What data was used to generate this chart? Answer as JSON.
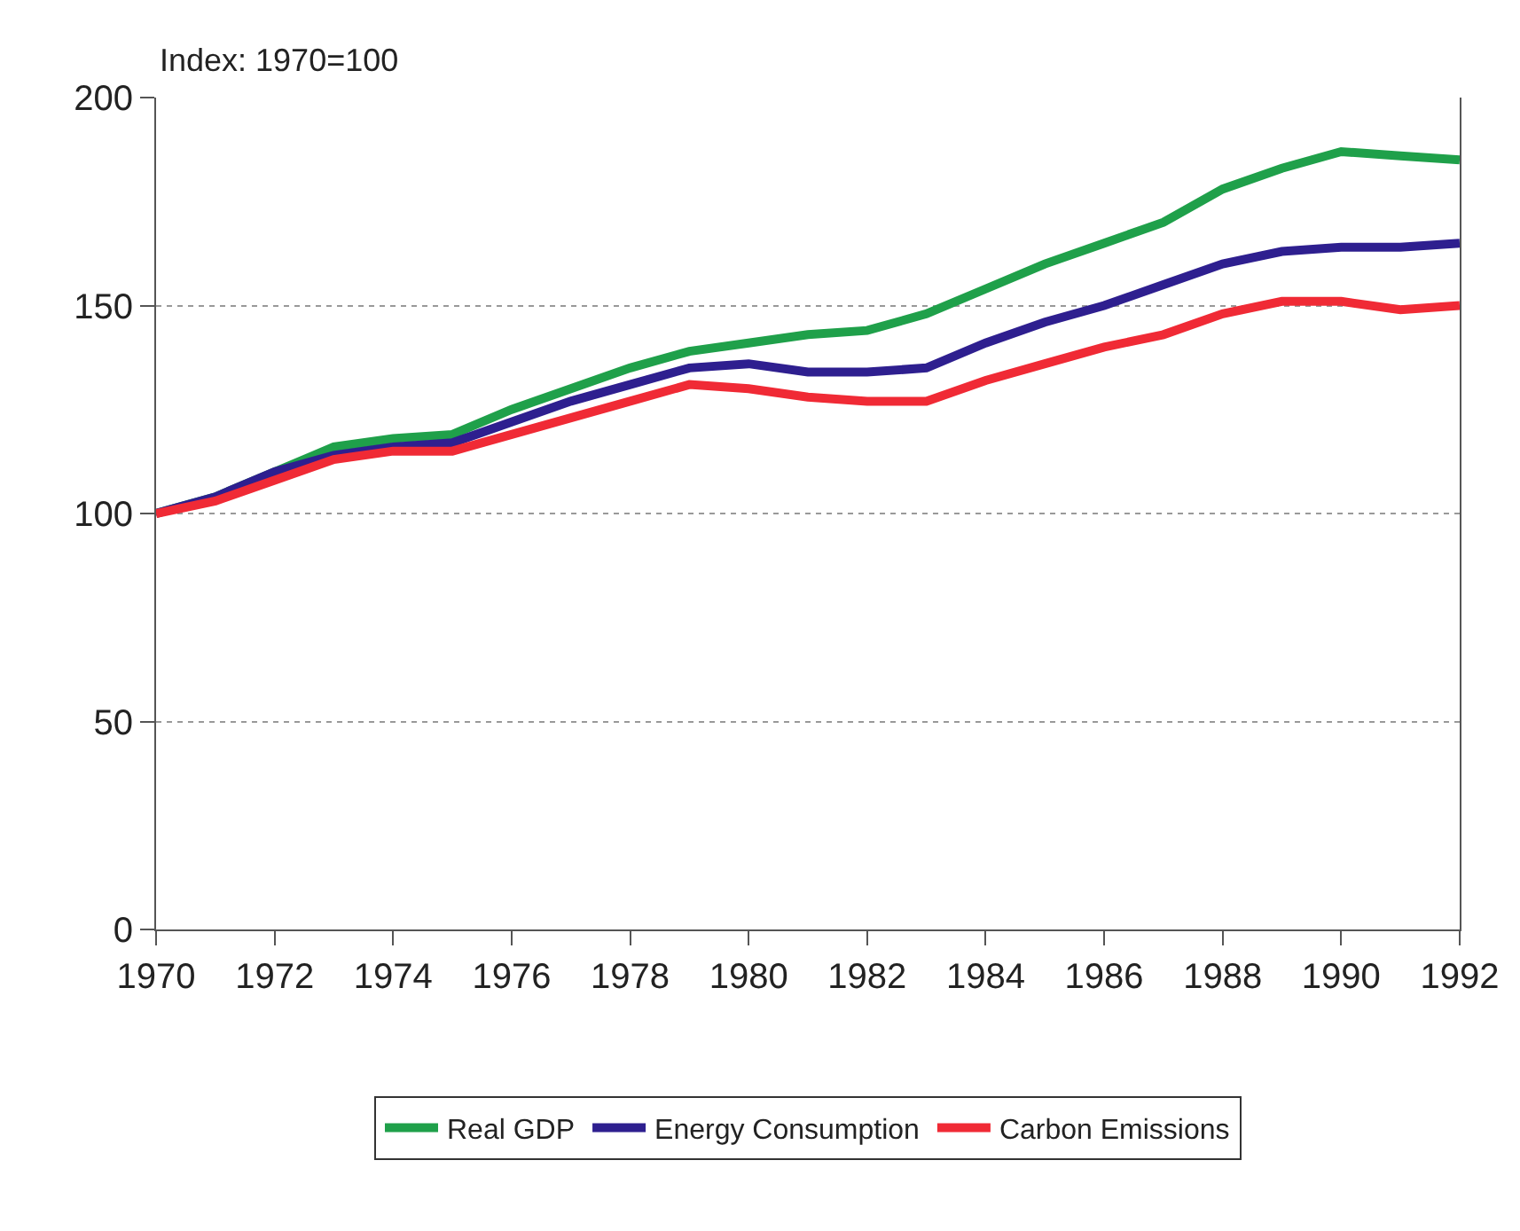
{
  "chart_data": {
    "type": "line",
    "ylabel": "Index: 1970=100",
    "x": [
      1970,
      1971,
      1972,
      1973,
      1974,
      1975,
      1976,
      1977,
      1978,
      1979,
      1980,
      1981,
      1982,
      1983,
      1984,
      1985,
      1986,
      1987,
      1988,
      1989,
      1990,
      1991,
      1992
    ],
    "series": [
      {
        "name": "Real GDP",
        "color": "#1fa04a",
        "values": [
          100,
          104,
          110,
          116,
          118,
          119,
          125,
          130,
          135,
          139,
          141,
          143,
          144,
          148,
          154,
          160,
          165,
          170,
          178,
          183,
          187,
          186,
          185
        ]
      },
      {
        "name": "Energy Consumption",
        "color": "#2e1f8f",
        "values": [
          100,
          104,
          110,
          114,
          116,
          117,
          122,
          127,
          131,
          135,
          136,
          134,
          134,
          135,
          141,
          146,
          150,
          155,
          160,
          163,
          164,
          164,
          165
        ]
      },
      {
        "name": "Carbon Emissions",
        "color": "#f02a35",
        "values": [
          100,
          103,
          108,
          113,
          115,
          115,
          119,
          123,
          127,
          131,
          130,
          128,
          127,
          127,
          132,
          136,
          140,
          143,
          148,
          151,
          151,
          149,
          150
        ]
      }
    ],
    "xlim": [
      1970,
      1992
    ],
    "xticks": [
      1970,
      1972,
      1974,
      1976,
      1978,
      1980,
      1982,
      1984,
      1986,
      1988,
      1990,
      1992
    ],
    "ylim": [
      0,
      200
    ],
    "yticks": [
      0,
      50,
      100,
      150,
      200
    ],
    "grid": "y",
    "legend": "bottom",
    "marker": "none",
    "line_style": "solid"
  }
}
